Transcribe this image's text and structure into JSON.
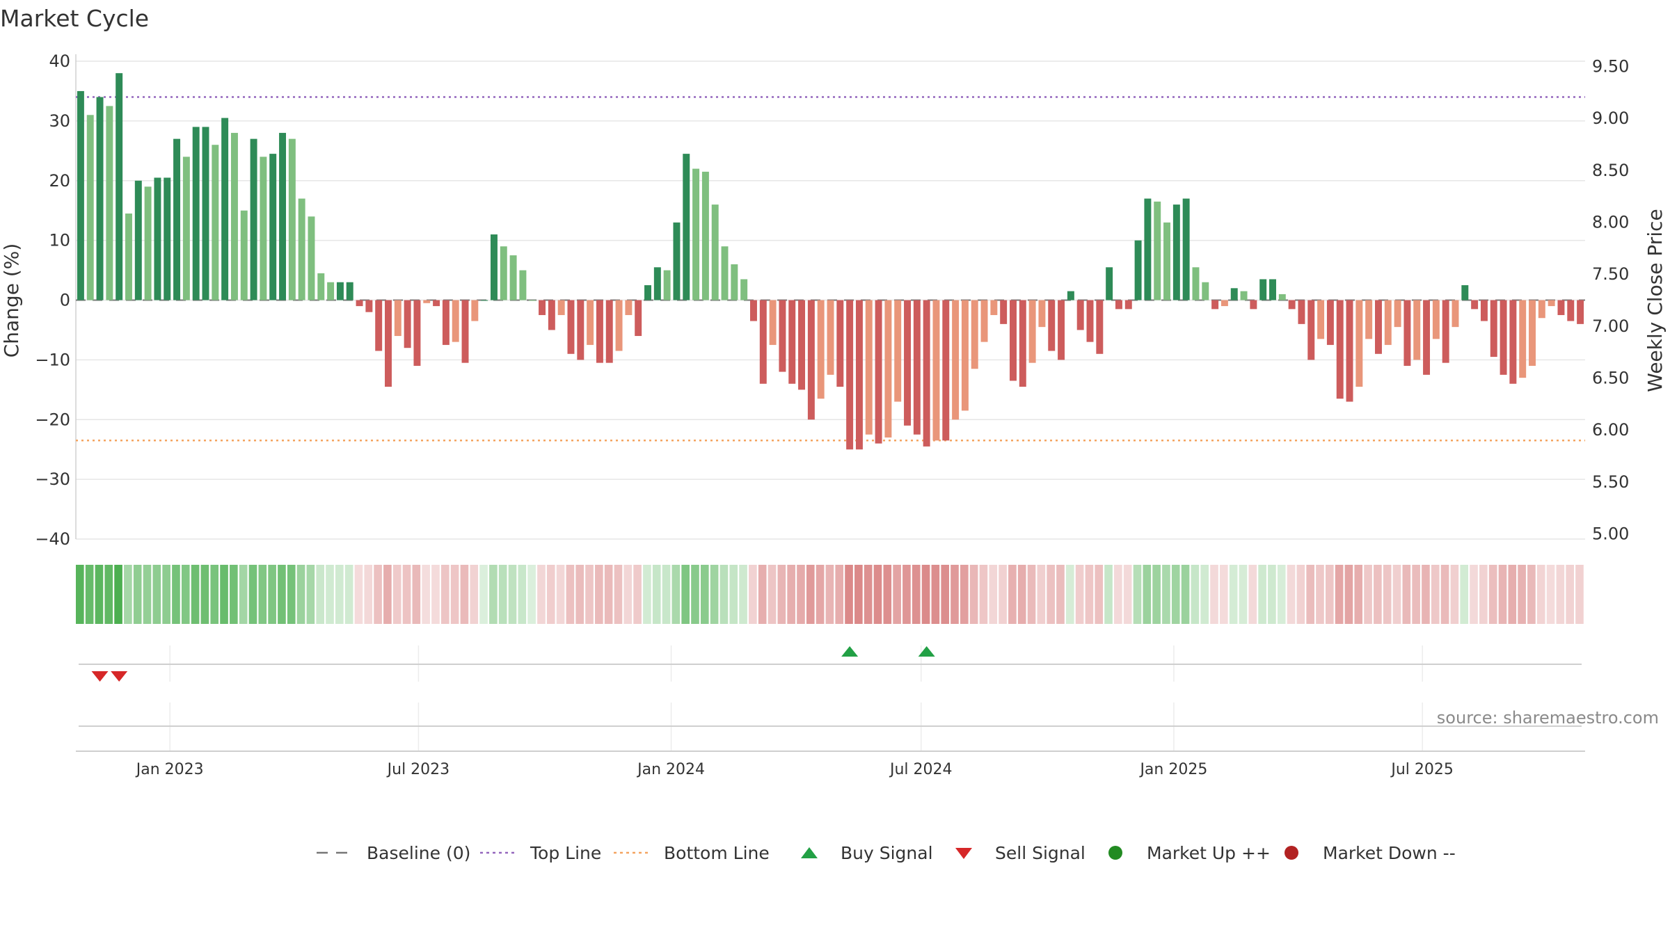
{
  "chart_data": {
    "type": "bar",
    "title": "Market Cycle",
    "ylabel_left": "Change (%)",
    "ylabel_right": "Weekly Close Price",
    "source": "source: sharemaestro.com",
    "y_left_ticks": [
      "40",
      "30",
      "20",
      "10",
      "0",
      "−10",
      "−20",
      "−30",
      "−40"
    ],
    "y_left_range": [
      -40,
      40
    ],
    "y_right_ticks": [
      "9.50",
      "9.00",
      "8.50",
      "8.00",
      "7.50",
      "7.00",
      "6.50",
      "6.00",
      "5.50",
      "5.00"
    ],
    "y_right_range": [
      4.95,
      9.55
    ],
    "x_ticks": [
      "Jan 2023",
      "Jul 2023",
      "Jan 2024",
      "Jul 2024",
      "Jan 2025",
      "Jul 2025"
    ],
    "x_tick_dates": [
      "2023-01-01",
      "2023-07-01",
      "2024-01-01",
      "2024-07-01",
      "2025-01-01",
      "2025-07-01"
    ],
    "first_week": "2022-10-28",
    "top_line": 34,
    "bottom_line": -23.5,
    "values": [
      35,
      31,
      34,
      32.5,
      38,
      14.5,
      20,
      19,
      20.5,
      20.5,
      27,
      24,
      29,
      29,
      26,
      30.5,
      28,
      15,
      27,
      24,
      24.5,
      28,
      27,
      17,
      14,
      4.5,
      3,
      3,
      3,
      -1,
      -2,
      -8.5,
      -14.5,
      -6,
      -8,
      -11,
      -0.5,
      -1,
      -7.5,
      -7,
      -10.5,
      -3.5,
      0,
      11,
      9,
      7.5,
      5,
      0,
      -2.5,
      -5,
      -2.5,
      -9,
      -10,
      -7.5,
      -10.5,
      -10.5,
      -8.5,
      -2.5,
      -6,
      2.5,
      5.5,
      5,
      13,
      24.5,
      22,
      21.5,
      16,
      9,
      6,
      3.5,
      -3.5,
      -14,
      -7.5,
      -12,
      -14,
      -15,
      -20,
      -16.5,
      -12.5,
      -14.5,
      -25,
      -25,
      -22.5,
      -24,
      -23,
      -17,
      -21,
      -22.5,
      -24.5,
      -23.5,
      -23.5,
      -20,
      -18.5,
      -11.5,
      -7,
      -2.5,
      -4,
      -13.5,
      -14.5,
      -10.5,
      -4.5,
      -8.5,
      -10,
      1.5,
      -5,
      -7,
      -9,
      5.5,
      -1.5,
      -1.5,
      10,
      17,
      16.5,
      13,
      16,
      17,
      5.5,
      3,
      -1.5,
      -1,
      2,
      1.5,
      -1.5,
      3.5,
      3.5,
      1,
      -1.5,
      -4,
      -10,
      -6.5,
      -7.5,
      -16.5,
      -17,
      -14.5,
      -6.5,
      -9,
      -7.5,
      -4.5,
      -11,
      -10,
      -12.5,
      -6.5,
      -10.5,
      -4.5,
      2.5,
      -1.5,
      -3.5,
      -9.5,
      -12.5,
      -14,
      -13,
      -11,
      -3,
      -1,
      -2.5,
      -3.5,
      -4
    ],
    "signals": {
      "buy_weeks": [
        80,
        88
      ],
      "sell_weeks": [
        2,
        4
      ]
    },
    "colors": {
      "up_strong": "#2e8b57",
      "up_light": "#7fbf7f",
      "down_strong": "#cd5c5c",
      "down_light": "#e9967a",
      "top_line": "#9467bd",
      "bottom_line": "#f4a460",
      "baseline": "#777777",
      "buy": "#22a045",
      "sell": "#d62728",
      "market_up": "#228b22",
      "market_down": "#b22222"
    },
    "legend": [
      {
        "label": "Baseline (0)",
        "symbol": "dash",
        "color": "#777777"
      },
      {
        "label": "Top Line",
        "symbol": "dot-line",
        "color": "#9467bd"
      },
      {
        "label": "Bottom Line",
        "symbol": "dot-line",
        "color": "#f4a460"
      },
      {
        "label": "Buy Signal",
        "symbol": "triangle-up",
        "color": "#22a045"
      },
      {
        "label": "Sell Signal",
        "symbol": "triangle-down",
        "color": "#d62728"
      },
      {
        "label": "Market Up ++",
        "symbol": "circle",
        "color": "#228b22"
      },
      {
        "label": "Market Down --",
        "symbol": "circle",
        "color": "#b22222"
      }
    ]
  }
}
